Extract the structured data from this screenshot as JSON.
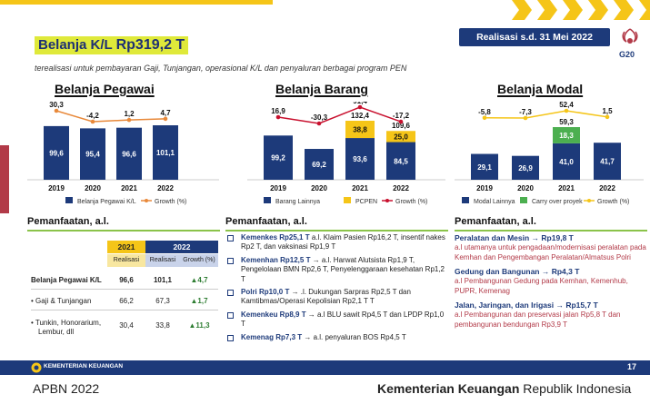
{
  "header": {
    "title_label": "Belanja K/L",
    "title_amount": "Rp319,2 T",
    "subtitle": "terealisasi untuk pembayaran Gaji, Tunjangan, operasional K/L dan penyaluran berbagai program PEN",
    "realisasi_badge": "Realisasi s.d. 31 Mei 2022",
    "g20_text": "G20"
  },
  "chart_data": [
    {
      "type": "bar",
      "title": "Belanja Pegawai",
      "categories": [
        "2019",
        "2020",
        "2021",
        "2022"
      ],
      "series": [
        {
          "name": "Belanja Pegawai K/L",
          "values": [
            99.6,
            95.4,
            96.6,
            101.1
          ],
          "labels": [
            "99,6",
            "95,4",
            "96,6",
            "101,1"
          ],
          "color": "#1d3a7a"
        }
      ],
      "growth": {
        "name": "Growth (%)",
        "values": [
          30.3,
          -4.2,
          1.2,
          4.7
        ],
        "labels": [
          "30,3",
          "-4,2",
          "1,2",
          "4,7"
        ],
        "color": "#e8893a"
      },
      "legend": [
        "Belanja Pegawai K/L",
        "Growth (%)"
      ]
    },
    {
      "type": "bar",
      "title": "Belanja Barang",
      "categories": [
        "2019",
        "2020",
        "2021",
        "2022"
      ],
      "series": [
        {
          "name": "Barang Lainnya",
          "values": [
            99.2,
            69.2,
            93.6,
            84.5
          ],
          "labels": [
            "99,2",
            "69,2",
            "93,6",
            "84,5"
          ],
          "color": "#1d3a7a"
        },
        {
          "name": "PCPEN",
          "values": [
            0,
            0,
            38.8,
            25.0
          ],
          "labels": [
            "",
            "",
            "38,8",
            "25,0"
          ],
          "color": "#f5c518"
        }
      ],
      "totals": [
        "",
        "",
        "132,4",
        "109,6"
      ],
      "growth": {
        "name": "Growth (%)",
        "values": [
          16.9,
          -30.3,
          91.4,
          -17.2
        ],
        "labels": [
          "16,9",
          "-30,3",
          "91,4",
          "-17,2"
        ],
        "color": "#c8102e"
      },
      "legend": [
        "Barang Lainnya",
        "PCPEN",
        "Growth (%)"
      ]
    },
    {
      "type": "bar",
      "title": "Belanja Modal",
      "categories": [
        "2019",
        "2020",
        "2021",
        "2022"
      ],
      "series": [
        {
          "name": "Modal Lainnya",
          "values": [
            29.1,
            26.9,
            41.0,
            41.7
          ],
          "labels": [
            "29,1",
            "26,9",
            "41,0",
            "41,7"
          ],
          "color": "#1d3a7a"
        },
        {
          "name": "Carry over proyek",
          "values": [
            0,
            0,
            18.3,
            0
          ],
          "labels": [
            "",
            "",
            "18,3",
            ""
          ],
          "color": "#4caf50"
        }
      ],
      "totals": [
        "",
        "",
        "59,3",
        ""
      ],
      "growth": {
        "name": "Growth (%)",
        "values": [
          -5.8,
          -7.3,
          52.4,
          1.5
        ],
        "labels": [
          "-5,8",
          "-7,3",
          "52,4",
          "1,5"
        ],
        "color": "#f5c518"
      },
      "legend": [
        "Modal Lainnya",
        "Carry over proyek",
        "Growth (%)"
      ]
    }
  ],
  "pemanfaatan_label": "Pemanfaatan, a.l.",
  "pegawai_table": {
    "year_2021": "2021",
    "year_2022": "2022",
    "sub_2021": "Realisasi",
    "sub_2022_real": "Realisasi",
    "sub_2022_growth": "Growth (%)",
    "rows": [
      {
        "label": "Belanja Pegawai K/L",
        "v2021": "96,6",
        "v2022": "101,1",
        "growth": "4,7"
      },
      {
        "label": "• Gaji & Tunjangan",
        "v2021": "66,2",
        "v2022": "67,3",
        "growth": "1,7"
      },
      {
        "label": "• Tunkin, Honorarium,",
        "label2": "Lembur, dll",
        "v2021": "30,4",
        "v2022": "33,8",
        "growth": "11,3"
      }
    ]
  },
  "barang_bullets": [
    {
      "head": "Kemenkes Rp25,1 T",
      "text": " a.l. Klaim Pasien Rp16,2 T, insentif nakes Rp2 T, dan vaksinasi Rp1,9 T"
    },
    {
      "head": "Kemenhan Rp12,5 T",
      "text": " → a.l. Harwat Alutsista Rp1,9 T, Pengelolaan BMN Rp2,6 T, Penyelenggaraan kesehatan Rp1,2 T"
    },
    {
      "head": "Polri Rp10,0 T",
      "text": " → .l. Dukungan Sarpras Rp2,5 T dan Kamtibmas/Operasi Kepolisian Rp2,1 T T"
    },
    {
      "head": "Kemenkeu Rp8,9 T",
      "text": " → a.l BLU sawit Rp4,5 T dan LPDP Rp1,0 T"
    },
    {
      "head": "Kemenag Rp7,3 T",
      "text": " → a.l. penyaluran BOS Rp4,5 T"
    }
  ],
  "modal_items": [
    {
      "head": "Peralatan dan Mesin → Rp19,8 T",
      "text": "a.l utamanya untuk pengadaan/modernisasi peralatan pada Kemhan dan Pengembangan Peralatan/Almatsus Polri"
    },
    {
      "head": "Gedung dan Bangunan → Rp4,3 T",
      "text": "a.l Pembangunan Gedung pada Kemhan, Kemenhub, PUPR, Kemenag"
    },
    {
      "head": "Jalan, Jaringan, dan Irigasi → Rp15,7 T",
      "text": "a.l Pembangunan dan preservasi jalan Rp5,8 T dan pembangunan bendungan Rp3,9 T"
    }
  ],
  "footer": {
    "ministry": "KEMENTERIAN KEUANGAN",
    "page": "17",
    "apbn": "APBN 2022",
    "kemenkeu_bold": "Kementerian Keuangan",
    "kemenkeu_rest": " Republik Indonesia"
  },
  "colors": {
    "navy": "#1d3a7a",
    "yellow": "#f5c518",
    "green": "#4caf50",
    "orange": "#e8893a",
    "red": "#c8102e",
    "lime": "#dfe93a"
  }
}
